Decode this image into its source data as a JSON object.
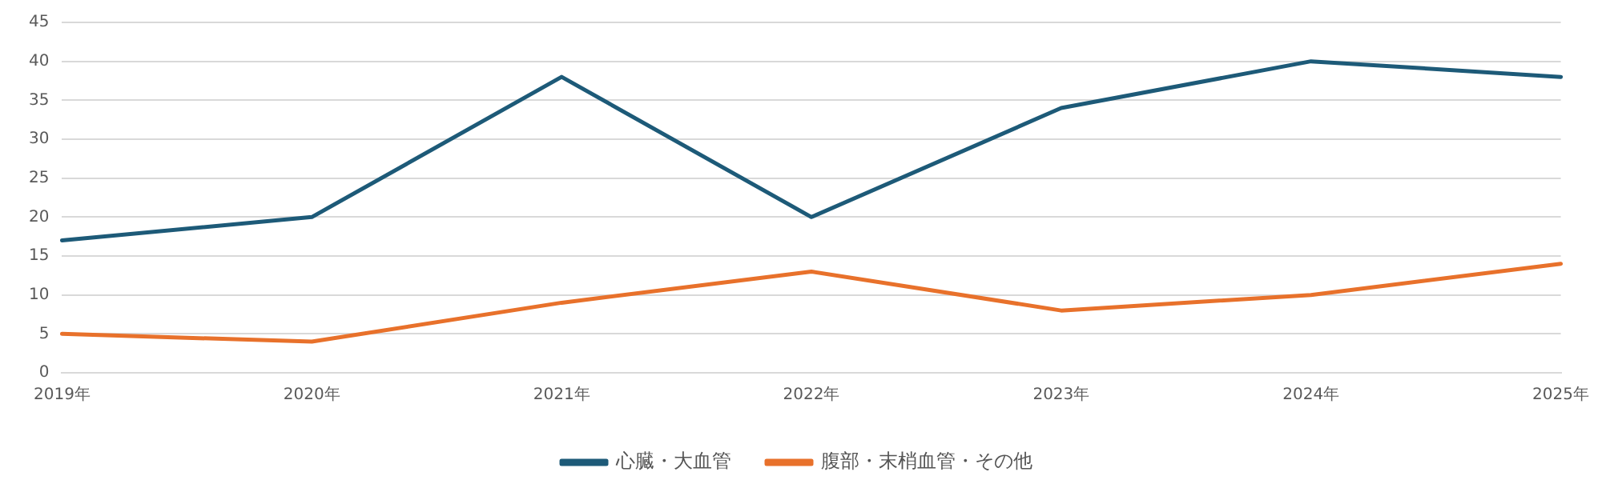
{
  "chart_data": {
    "type": "line",
    "categories": [
      "2019年",
      "2020年",
      "2021年",
      "2022年",
      "2023年",
      "2024年",
      "2025年"
    ],
    "series": [
      {
        "name": "心臓・大血管",
        "color": "#1d5a78",
        "values": [
          17,
          20,
          38,
          20,
          34,
          40,
          38
        ]
      },
      {
        "name": "腹部・末梢血管・その他",
        "color": "#e8712b",
        "values": [
          5,
          4,
          9,
          13,
          8,
          10,
          14
        ]
      }
    ],
    "ylim": [
      0,
      45
    ],
    "yticks": [
      0,
      5,
      10,
      15,
      20,
      25,
      30,
      35,
      40,
      45
    ],
    "grid": "y",
    "legend": "bottom",
    "marker": "none",
    "line_style": "solid"
  }
}
